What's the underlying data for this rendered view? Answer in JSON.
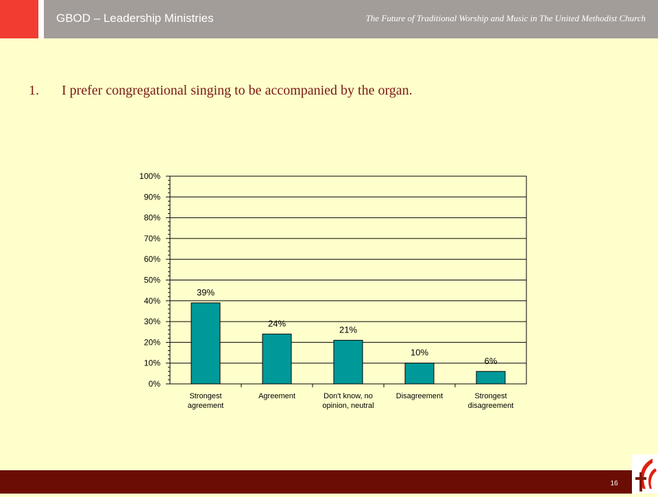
{
  "header": {
    "org": "GBOD – Leadership Ministries",
    "deck_title": "The Future of Traditional Worship and Music in The United Methodist Church"
  },
  "question": {
    "number": "1.",
    "text": "I prefer congregational singing to be accompanied by the organ."
  },
  "footer": {
    "page_number": "16",
    "logo_icon": "cross-and-flame-logo-icon"
  },
  "colors": {
    "background": "#FFFFCC",
    "header": "#A39D9A",
    "accent_red": "#F23C32",
    "footer": "#6B0D05",
    "bar": "#009999"
  },
  "chart_data": {
    "type": "bar",
    "categories": [
      [
        "Strongest",
        "agreement"
      ],
      [
        "Agreement"
      ],
      [
        "Don't know, no",
        "opinion, neutral"
      ],
      [
        "Disagreement"
      ],
      [
        "Strongest",
        "disagreement"
      ]
    ],
    "values": [
      39,
      24,
      21,
      10,
      6
    ],
    "data_labels": [
      "39%",
      "24%",
      "21%",
      "10%",
      "6%"
    ],
    "y_ticks": [
      "0%",
      "10%",
      "20%",
      "30%",
      "40%",
      "50%",
      "60%",
      "70%",
      "80%",
      "90%",
      "100%"
    ],
    "ylim": [
      0,
      100
    ],
    "grid": true,
    "legend": "none"
  }
}
